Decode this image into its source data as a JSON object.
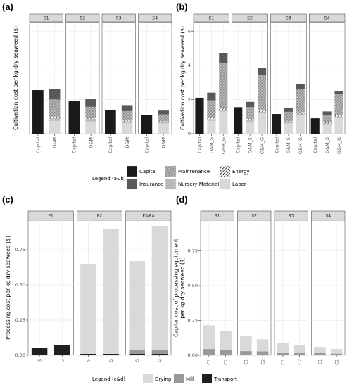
{
  "colors": {
    "Capital": "#1a1a1a",
    "Insurance": "#595959",
    "Maintenance": "#8c8c8c",
    "Nursery Material": "#b3b3b3",
    "Energy": "#ffffff",
    "Labor": "#d9d9d9",
    "Drying": "#d9d9d9",
    "Mill": "#999999",
    "Transport": "#1f1f1f",
    "strip": "#d9d9d9",
    "panelbg": "#ffffff",
    "grid": "#ebebeb"
  },
  "legend_ab": {
    "title": "Legend (a&b)",
    "entries": [
      "Capital",
      "Maintenance",
      "Energy",
      "Insurance",
      "Nursery Material",
      "Labor"
    ]
  },
  "legend_cd": {
    "title": "Legend (c&d)",
    "entries": [
      "Drying",
      "Mill",
      "Transport"
    ]
  },
  "chart_data": [
    {
      "id": "a",
      "panel_label": "(a)",
      "type": "bar",
      "stacked": true,
      "ylabel": "Cultivation cost per kg dry seaweed ($)",
      "ylim": [
        0,
        6.5
      ],
      "yticks": [
        0,
        2,
        4,
        6
      ],
      "show_yticks": false,
      "facets": [
        {
          "strip": "S1",
          "bars": [
            {
              "label": "Capital",
              "stack": [
                {
                  "component": "Capital",
                  "value": 2.55
                }
              ]
            },
            {
              "label": "O&M",
              "stack": [
                {
                  "component": "Labor",
                  "value": 0.75
                },
                {
                  "component": "Nursery Material",
                  "value": 0.2
                },
                {
                  "component": "Energy",
                  "value": 0.05
                },
                {
                  "component": "Maintenance",
                  "value": 1.0
                },
                {
                  "component": "Insurance",
                  "value": 0.62
                }
              ]
            }
          ]
        },
        {
          "strip": "S2",
          "bars": [
            {
              "label": "Capital",
              "stack": [
                {
                  "component": "Capital",
                  "value": 1.9
                }
              ]
            },
            {
              "label": "O&M",
              "stack": [
                {
                  "component": "Labor",
                  "value": 0.72
                },
                {
                  "component": "Nursery Material",
                  "value": 0.15
                },
                {
                  "component": "Energy",
                  "value": 0.05
                },
                {
                  "component": "Maintenance",
                  "value": 0.65
                },
                {
                  "component": "Insurance",
                  "value": 0.48
                }
              ]
            }
          ]
        },
        {
          "strip": "S3",
          "bars": [
            {
              "label": "Capital",
              "stack": [
                {
                  "component": "Capital",
                  "value": 1.4
                }
              ]
            },
            {
              "label": "O&M",
              "stack": [
                {
                  "component": "Labor",
                  "value": 0.62
                },
                {
                  "component": "Nursery Material",
                  "value": 0.1
                },
                {
                  "component": "Energy",
                  "value": 0.05
                },
                {
                  "component": "Maintenance",
                  "value": 0.55
                },
                {
                  "component": "Insurance",
                  "value": 0.35
                }
              ]
            }
          ]
        },
        {
          "strip": "S4",
          "bars": [
            {
              "label": "Capital",
              "stack": [
                {
                  "component": "Capital",
                  "value": 1.1
                }
              ]
            },
            {
              "label": "O&M",
              "stack": [
                {
                  "component": "Labor",
                  "value": 0.6
                },
                {
                  "component": "Nursery Material",
                  "value": 0.08
                },
                {
                  "component": "Energy",
                  "value": 0.05
                },
                {
                  "component": "Maintenance",
                  "value": 0.4
                },
                {
                  "component": "Insurance",
                  "value": 0.22
                }
              ]
            }
          ]
        }
      ]
    },
    {
      "id": "b",
      "panel_label": "(b)",
      "type": "bar",
      "stacked": true,
      "ylabel": "Cultivation cost per kg dry seaweed ($)",
      "ylim": [
        0,
        6.5
      ],
      "yticks": [
        0,
        2,
        4,
        6
      ],
      "show_yticks": true,
      "facets": [
        {
          "strip": "S1",
          "bars": [
            {
              "label": "Capital",
              "stack": [
                {
                  "component": "Capital",
                  "value": 2.1
                }
              ]
            },
            {
              "label": "O&M_S",
              "stack": [
                {
                  "component": "Labor",
                  "value": 0.75
                },
                {
                  "component": "Nursery Material",
                  "value": 0.1
                },
                {
                  "component": "Energy",
                  "value": 0.1
                },
                {
                  "component": "Maintenance",
                  "value": 1.0
                },
                {
                  "component": "Insurance",
                  "value": 0.45
                }
              ]
            },
            {
              "label": "O&M_G",
              "stack": [
                {
                  "component": "Labor",
                  "value": 1.3
                },
                {
                  "component": "Nursery Material",
                  "value": 0.1
                },
                {
                  "component": "Energy",
                  "value": 0.1
                },
                {
                  "component": "Maintenance",
                  "value": 2.65
                },
                {
                  "component": "Insurance",
                  "value": 0.55
                }
              ]
            }
          ]
        },
        {
          "strip": "S2",
          "bars": [
            {
              "label": "Capital",
              "stack": [
                {
                  "component": "Capital",
                  "value": 1.55
                }
              ]
            },
            {
              "label": "O&M_S",
              "stack": [
                {
                  "component": "Labor",
                  "value": 0.7
                },
                {
                  "component": "Nursery Material",
                  "value": 0.08
                },
                {
                  "component": "Energy",
                  "value": 0.08
                },
                {
                  "component": "Maintenance",
                  "value": 0.7
                },
                {
                  "component": "Insurance",
                  "value": 0.3
                }
              ]
            },
            {
              "label": "O&M_G",
              "stack": [
                {
                  "component": "Labor",
                  "value": 1.2
                },
                {
                  "component": "Nursery Material",
                  "value": 0.08
                },
                {
                  "component": "Energy",
                  "value": 0.1
                },
                {
                  "component": "Maintenance",
                  "value": 2.05
                },
                {
                  "component": "Insurance",
                  "value": 0.4
                }
              ]
            }
          ]
        },
        {
          "strip": "S3",
          "bars": [
            {
              "label": "Capital",
              "stack": [
                {
                  "component": "Capital",
                  "value": 1.15
                }
              ]
            },
            {
              "label": "O&M_S",
              "stack": [
                {
                  "component": "Labor",
                  "value": 0.6
                },
                {
                  "component": "Nursery Material",
                  "value": 0.06
                },
                {
                  "component": "Energy",
                  "value": 0.07
                },
                {
                  "component": "Maintenance",
                  "value": 0.55
                },
                {
                  "component": "Insurance",
                  "value": 0.22
                }
              ]
            },
            {
              "label": "O&M_G",
              "stack": [
                {
                  "component": "Labor",
                  "value": 1.1
                },
                {
                  "component": "Nursery Material",
                  "value": 0.06
                },
                {
                  "component": "Energy",
                  "value": 0.1
                },
                {
                  "component": "Maintenance",
                  "value": 1.35
                },
                {
                  "component": "Insurance",
                  "value": 0.29
                }
              ]
            }
          ]
        },
        {
          "strip": "S4",
          "bars": [
            {
              "label": "Capital",
              "stack": [
                {
                  "component": "Capital",
                  "value": 0.9
                }
              ]
            },
            {
              "label": "O&M_S",
              "stack": [
                {
                  "component": "Labor",
                  "value": 0.55
                },
                {
                  "component": "Nursery Material",
                  "value": 0.05
                },
                {
                  "component": "Energy",
                  "value": 0.06
                },
                {
                  "component": "Maintenance",
                  "value": 0.45
                },
                {
                  "component": "Insurance",
                  "value": 0.19
                }
              ]
            },
            {
              "label": "O&M_G",
              "stack": [
                {
                  "component": "Labor",
                  "value": 0.95
                },
                {
                  "component": "Nursery Material",
                  "value": 0.05
                },
                {
                  "component": "Energy",
                  "value": 0.1
                },
                {
                  "component": "Maintenance",
                  "value": 1.2
                },
                {
                  "component": "Insurance",
                  "value": 0.2
                }
              ]
            }
          ]
        }
      ]
    },
    {
      "id": "c",
      "panel_label": "(c)",
      "type": "bar",
      "stacked": true,
      "ylabel": "Processing cost per kg dry seaweed ($)",
      "ylim": [
        0,
        0.96
      ],
      "yticks": [
        0,
        0.25,
        0.5,
        0.75
      ],
      "ytick_labels": [
        "0.00",
        "0.25",
        "0.50",
        "0.75"
      ],
      "show_yticks": true,
      "facets": [
        {
          "strip": "P1",
          "bars": [
            {
              "label": "S",
              "stack": [
                {
                  "component": "Transport",
                  "value": 0.05
                }
              ]
            },
            {
              "label": "G",
              "stack": [
                {
                  "component": "Transport",
                  "value": 0.07
                }
              ]
            }
          ]
        },
        {
          "strip": "P2",
          "bars": [
            {
              "label": "S",
              "stack": [
                {
                  "component": "Transport",
                  "value": 0.01
                },
                {
                  "component": "Drying",
                  "value": 0.64
                }
              ]
            },
            {
              "label": "G",
              "stack": [
                {
                  "component": "Transport",
                  "value": 0.01
                },
                {
                  "component": "Drying",
                  "value": 0.89
                }
              ]
            }
          ]
        },
        {
          "strip": "P3/P4",
          "bars": [
            {
              "label": "S",
              "stack": [
                {
                  "component": "Transport",
                  "value": 0.01
                },
                {
                  "component": "Mill",
                  "value": 0.03
                },
                {
                  "component": "Drying",
                  "value": 0.63
                }
              ]
            },
            {
              "label": "G",
              "stack": [
                {
                  "component": "Transport",
                  "value": 0.01
                },
                {
                  "component": "Mill",
                  "value": 0.03
                },
                {
                  "component": "Drying",
                  "value": 0.88
                }
              ]
            }
          ]
        }
      ]
    },
    {
      "id": "d",
      "panel_label": "(d)",
      "type": "bar",
      "stacked": true,
      "ylabel": "Capital cost of processing equipment\nper kg dry seaweed ($)",
      "ylim": [
        0,
        0.97
      ],
      "yticks": [
        0,
        0.25,
        0.5,
        0.75
      ],
      "ytick_labels": [
        "0.00",
        "0.25",
        "0.50",
        "0.75"
      ],
      "show_yticks": true,
      "facets": [
        {
          "strip": "S1",
          "bars": [
            {
              "label": "C1",
              "stack": [
                {
                  "component": "Mill",
                  "value": 0.045
                },
                {
                  "component": "Drying",
                  "value": 0.17
                }
              ]
            },
            {
              "label": "C2",
              "stack": [
                {
                  "component": "Mill",
                  "value": 0.04
                },
                {
                  "component": "Drying",
                  "value": 0.135
                }
              ]
            }
          ]
        },
        {
          "strip": "S2",
          "bars": [
            {
              "label": "C1",
              "stack": [
                {
                  "component": "Mill",
                  "value": 0.03
                },
                {
                  "component": "Drying",
                  "value": 0.11
                }
              ]
            },
            {
              "label": "C2",
              "stack": [
                {
                  "component": "Mill",
                  "value": 0.028
                },
                {
                  "component": "Drying",
                  "value": 0.087
                }
              ]
            }
          ]
        },
        {
          "strip": "S3",
          "bars": [
            {
              "label": "C1",
              "stack": [
                {
                  "component": "Mill",
                  "value": 0.02
                },
                {
                  "component": "Drying",
                  "value": 0.07
                }
              ]
            },
            {
              "label": "C2",
              "stack": [
                {
                  "component": "Mill",
                  "value": 0.018
                },
                {
                  "component": "Drying",
                  "value": 0.057
                }
              ]
            }
          ]
        },
        {
          "strip": "S4",
          "bars": [
            {
              "label": "C1",
              "stack": [
                {
                  "component": "Mill",
                  "value": 0.015
                },
                {
                  "component": "Drying",
                  "value": 0.045
                }
              ]
            },
            {
              "label": "C2",
              "stack": [
                {
                  "component": "Mill",
                  "value": 0.012
                },
                {
                  "component": "Drying",
                  "value": 0.033
                }
              ]
            }
          ]
        }
      ]
    }
  ]
}
